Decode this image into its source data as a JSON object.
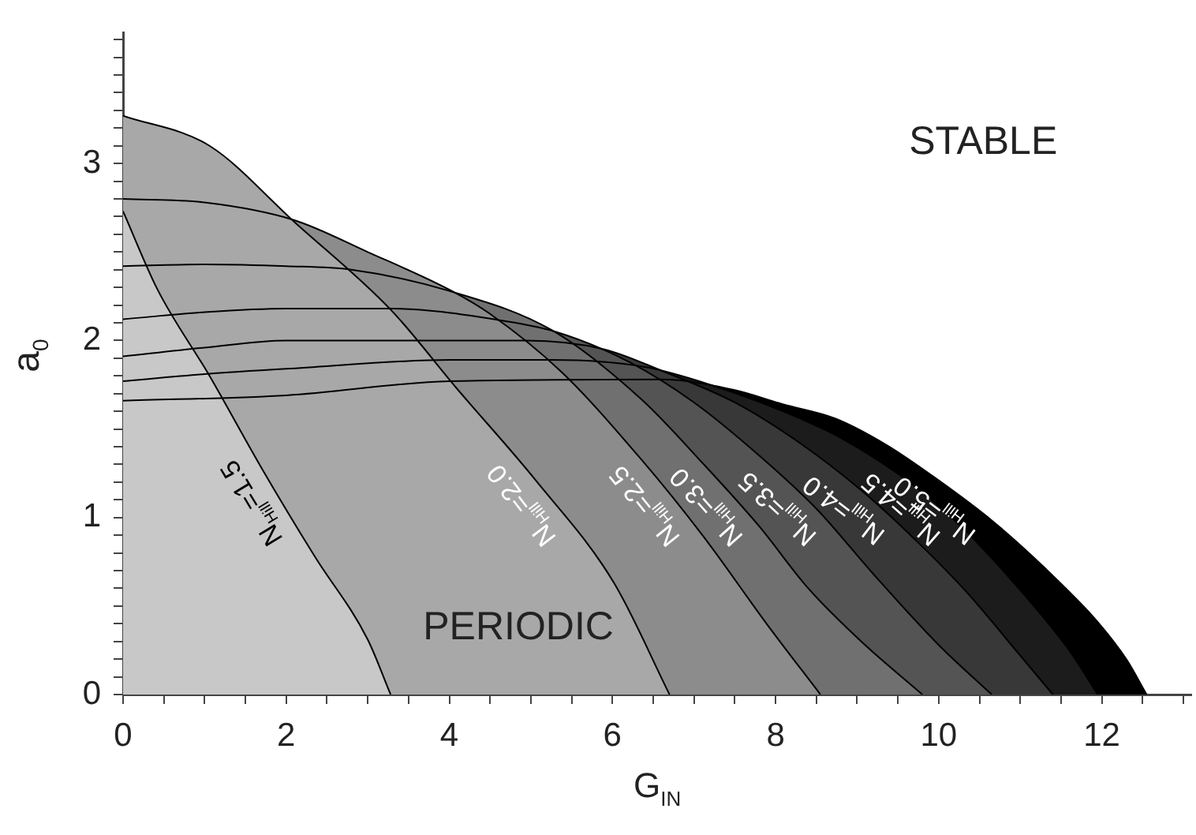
{
  "chart_data": {
    "type": "area",
    "xlabel": "G$_{IN}$",
    "ylabel": "a$_{0}$",
    "xlim": [
      0,
      13.1
    ],
    "ylim": [
      0,
      3.74
    ],
    "xticks": [
      0,
      {
        "value": 0.5,
        "label": null
      },
      {
        "value": 1,
        "label": null
      },
      {
        "value": 1.5,
        "label": null
      },
      2,
      {
        "value": 2.5,
        "label": null
      },
      {
        "value": 3,
        "label": null
      },
      {
        "value": 3.5,
        "label": null
      },
      4,
      {
        "value": 4.5,
        "label": null
      },
      {
        "value": 5,
        "label": null
      },
      {
        "value": 5.5,
        "label": null
      },
      6,
      {
        "value": 6.5,
        "label": null
      },
      {
        "value": 7,
        "label": null
      },
      {
        "value": 7.5,
        "label": null
      },
      8,
      {
        "value": 8.5,
        "label": null
      },
      {
        "value": 9,
        "label": null
      },
      {
        "value": 9.5,
        "label": null
      },
      10,
      {
        "value": 10.5,
        "label": null
      },
      {
        "value": 11,
        "label": null
      },
      {
        "value": 11.5,
        "label": null
      },
      12,
      {
        "value": 12.5,
        "label": null
      },
      {
        "value": 13,
        "label": null
      }
    ],
    "yticks": [
      0,
      {
        "value": 0.1,
        "label": null
      },
      {
        "value": 0.2,
        "label": null
      },
      {
        "value": 0.3,
        "label": null
      },
      {
        "value": 0.4,
        "label": null
      },
      {
        "value": 0.5,
        "label": null
      },
      {
        "value": 0.6,
        "label": null
      },
      {
        "value": 0.7,
        "label": null
      },
      {
        "value": 0.8,
        "label": null
      },
      {
        "value": 0.9,
        "label": null
      },
      1,
      {
        "value": 1.1,
        "label": null
      },
      {
        "value": 1.2,
        "label": null
      },
      {
        "value": 1.3,
        "label": null
      },
      {
        "value": 1.4,
        "label": null
      },
      {
        "value": 1.5,
        "label": null
      },
      {
        "value": 1.6,
        "label": null
      },
      {
        "value": 1.7,
        "label": null
      },
      {
        "value": 1.8,
        "label": null
      },
      {
        "value": 1.9,
        "label": null
      },
      2,
      {
        "value": 2.1,
        "label": null
      },
      {
        "value": 2.2,
        "label": null
      },
      {
        "value": 2.3,
        "label": null
      },
      {
        "value": 2.4,
        "label": null
      },
      {
        "value": 2.5,
        "label": null
      },
      {
        "value": 2.6,
        "label": null
      },
      {
        "value": 2.7,
        "label": null
      },
      {
        "value": 2.8,
        "label": null
      },
      {
        "value": 2.9,
        "label": null
      },
      3,
      {
        "value": 3.1,
        "label": null
      },
      {
        "value": 3.2,
        "label": null
      },
      {
        "value": 3.3,
        "label": null
      },
      {
        "value": 3.4,
        "label": null
      },
      {
        "value": 3.5,
        "label": null
      },
      {
        "value": 3.6,
        "label": null
      },
      {
        "value": 3.7,
        "label": null
      }
    ],
    "annotations": [
      "STABLE",
      "PERIODIC"
    ],
    "series": [
      {
        "name": "N$_{Hill}$=1.5",
        "color": "#c8c8c8",
        "x": [
          0,
          0.42,
          1.06,
          1.71,
          2.35,
          3.0,
          3.28
        ],
        "values": [
          2.73,
          2.29,
          1.8,
          1.27,
          0.78,
          0.31,
          0
        ]
      },
      {
        "name": "N$_{Hill}$=2.0",
        "color": "#a8a8a8",
        "x": [
          0,
          1.06,
          2.1,
          3.29,
          4.09,
          5.06,
          6.02,
          6.7
        ],
        "values": [
          3.27,
          3.1,
          2.67,
          2.17,
          1.73,
          1.21,
          0.63,
          0
        ]
      },
      {
        "name": "N$_{Hill}$=2.5",
        "color": "#8c8c8c",
        "x": [
          0,
          1,
          2.1,
          3,
          4.03,
          4.5,
          5.38,
          6.35,
          7.12,
          7.89,
          8.55
        ],
        "values": [
          2.8,
          2.78,
          2.68,
          2.5,
          2.28,
          2.15,
          1.82,
          1.33,
          0.89,
          0.4,
          0
        ]
      },
      {
        "name": "N$_{Hill}$=3.0",
        "color": "#707070",
        "x": [
          0,
          1,
          2,
          2.8,
          4,
          5.25,
          6.35,
          7.12,
          7.8,
          8.4,
          9.05,
          9.8
        ],
        "values": [
          2.42,
          2.43,
          2.42,
          2.4,
          2.28,
          2.06,
          1.67,
          1.3,
          0.95,
          0.6,
          0.3,
          0
        ]
      },
      {
        "name": "N$_{Hill}$=3.5",
        "color": "#545454",
        "x": [
          0,
          1,
          2,
          3.3,
          4.55,
          5.3,
          6.2,
          7,
          7.8,
          8.5,
          9.2,
          10,
          10.65
        ],
        "values": [
          2.12,
          2.16,
          2.18,
          2.18,
          2.12,
          2.05,
          1.88,
          1.65,
          1.35,
          1.05,
          0.68,
          0.28,
          0
        ]
      },
      {
        "name": "N$_{Hill}$=4.0",
        "color": "#383838",
        "x": [
          0,
          1,
          2,
          3.65,
          4.95,
          5.9,
          6.6,
          7.5,
          8.3,
          9.06,
          9.7,
          10.34,
          11,
          11.4
        ],
        "values": [
          1.91,
          1.96,
          2.0,
          2.0,
          2.0,
          1.95,
          1.83,
          1.65,
          1.42,
          1.15,
          0.88,
          0.58,
          0.22,
          0
        ]
      },
      {
        "name": "N$_{Hill}$=4.5",
        "color": "#1c1c1c",
        "x": [
          0,
          1,
          2,
          4,
          5.25,
          6.4,
          7.2,
          8.09,
          8.8,
          9.7,
          10.34,
          10.98,
          11.6,
          11.95
        ],
        "values": [
          1.77,
          1.81,
          1.84,
          1.89,
          1.89,
          1.85,
          1.75,
          1.6,
          1.45,
          1.18,
          0.92,
          0.6,
          0.25,
          0
        ]
      },
      {
        "name": "N$_{Hill}$=5.0",
        "color": "#000000",
        "x": [
          0,
          2,
          4,
          6.6,
          7.5,
          8.09,
          8.73,
          9.36,
          10,
          10.66,
          11.29,
          11.95,
          12.3,
          12.55
        ],
        "values": [
          1.66,
          1.69,
          1.77,
          1.78,
          1.72,
          1.64,
          1.56,
          1.41,
          1.21,
          0.98,
          0.72,
          0.41,
          0.2,
          0
        ]
      }
    ]
  }
}
